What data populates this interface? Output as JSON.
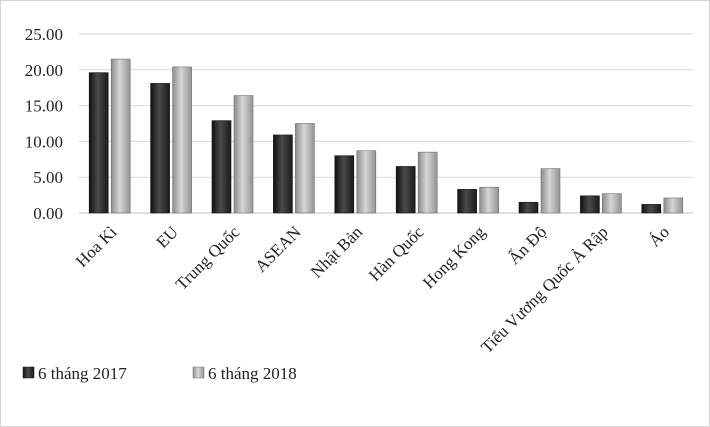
{
  "chart_data": {
    "type": "bar",
    "categories": [
      "Hoa Kì",
      "EU",
      "Trung Quốc",
      "ASEAN",
      "Nhật Bản",
      "Hàn Quốc",
      "Hong Kong",
      "Ấn Độ",
      "Tiểu Vương Quốc Ả Rập",
      "Áo"
    ],
    "series": [
      {
        "name": "6 tháng 2017",
        "values": [
          19.6,
          18.1,
          12.9,
          10.9,
          8.0,
          6.5,
          3.3,
          1.5,
          2.4,
          1.2
        ]
      },
      {
        "name": "6 tháng 2018",
        "values": [
          21.5,
          20.4,
          16.4,
          12.5,
          8.7,
          8.5,
          3.6,
          6.2,
          2.7,
          2.1
        ]
      }
    ],
    "ylim": [
      0,
      25
    ],
    "yticks": [
      "0.00",
      "5.00",
      "10.00",
      "15.00",
      "20.00",
      "25.00"
    ],
    "grid": true,
    "legend_position": "bottom-left",
    "colors": {
      "series1": "#2b2b2b",
      "series2": "#a8a8a8"
    }
  }
}
